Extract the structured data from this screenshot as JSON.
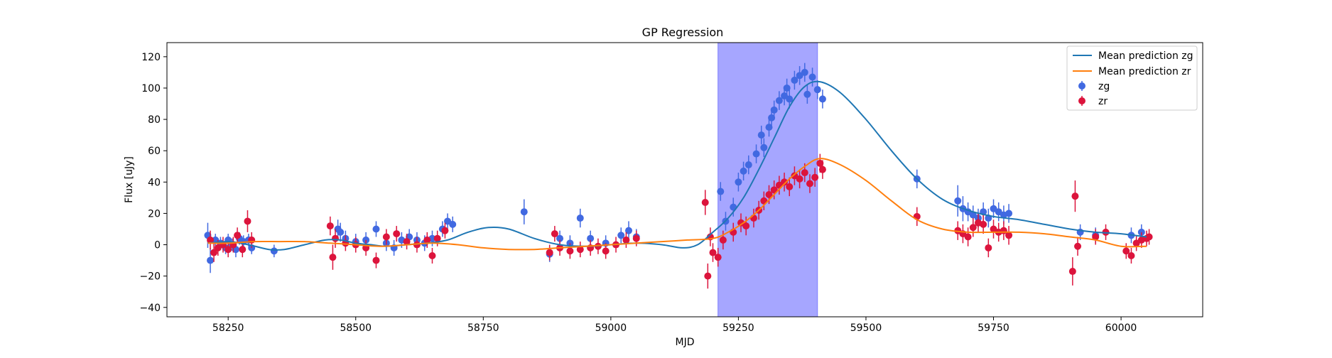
{
  "chart_data": {
    "type": "scatter",
    "title": "GP Regression",
    "xlabel": "MJD",
    "ylabel": "Flux [uJy]",
    "xlim": [
      58130,
      60160
    ],
    "ylim": [
      -46,
      129
    ],
    "x_ticks": [
      58250,
      58500,
      58750,
      59000,
      59250,
      59500,
      59750,
      60000
    ],
    "y_ticks": [
      -40,
      -20,
      0,
      20,
      40,
      60,
      80,
      100,
      120
    ],
    "grid": false,
    "legend_position": "top-right",
    "shaded_region": {
      "x_start": 59210,
      "x_end": 59405,
      "color": "#a6a6ff"
    },
    "series": [
      {
        "name": "Mean prediction zg",
        "kind": "line",
        "color": "#1f77b4",
        "x": [
          58210,
          58250,
          58290,
          58330,
          58360,
          58400,
          58440,
          58470,
          58500,
          58530,
          58560,
          58600,
          58640,
          58680,
          58720,
          58760,
          58800,
          58850,
          58900,
          58950,
          59000,
          59050,
          59100,
          59140,
          59170,
          59200,
          59230,
          59260,
          59290,
          59320,
          59350,
          59380,
          59410,
          59450,
          59500,
          59550,
          59600,
          59650,
          59700,
          59750,
          59800,
          59850,
          59900,
          59950,
          60000,
          60050
        ],
        "y": [
          1,
          2,
          0,
          -3,
          -3,
          0,
          3,
          3,
          1,
          0,
          -1,
          0,
          1,
          3,
          8,
          11,
          10,
          4,
          0,
          -1,
          0,
          1,
          0,
          -2,
          0,
          8,
          17,
          30,
          48,
          68,
          88,
          101,
          104,
          97,
          80,
          60,
          42,
          29,
          22,
          18,
          16,
          13,
          10,
          8,
          7,
          5
        ]
      },
      {
        "name": "Mean prediction zr",
        "kind": "line",
        "color": "#ff7f0e",
        "x": [
          58210,
          58250,
          58300,
          58350,
          58400,
          58450,
          58500,
          58550,
          58600,
          58650,
          58700,
          58750,
          58800,
          58850,
          58900,
          58950,
          59000,
          59050,
          59100,
          59150,
          59200,
          59230,
          59260,
          59290,
          59320,
          59350,
          59380,
          59410,
          59450,
          59500,
          59550,
          59600,
          59650,
          59700,
          59750,
          59800,
          59850,
          59900,
          59950,
          60000,
          60050
        ],
        "y": [
          1,
          1,
          2,
          2,
          2,
          1,
          0,
          -1,
          0,
          1,
          0,
          -2,
          -3,
          -3,
          -2,
          -1,
          0,
          1,
          2,
          3,
          4,
          8,
          14,
          22,
          32,
          42,
          50,
          55,
          51,
          41,
          28,
          16,
          10,
          8,
          8,
          8,
          7,
          5,
          3,
          -1,
          -1
        ]
      },
      {
        "name": "zg",
        "kind": "errorbar",
        "color": "#4169e1",
        "x": [
          58210,
          58215,
          58225,
          58235,
          58245,
          58250,
          58258,
          58265,
          58272,
          58280,
          58290,
          58296,
          58340,
          58465,
          58470,
          58480,
          58500,
          58520,
          58540,
          58560,
          58575,
          58590,
          58605,
          58620,
          58635,
          58650,
          58670,
          58680,
          58690,
          58830,
          58880,
          58900,
          58920,
          58940,
          58960,
          58990,
          59020,
          59035,
          59050,
          59215,
          59225,
          59240,
          59250,
          59260,
          59270,
          59285,
          59295,
          59300,
          59310,
          59315,
          59320,
          59330,
          59340,
          59345,
          59350,
          59360,
          59370,
          59380,
          59385,
          59395,
          59405,
          59415,
          59600,
          59680,
          59690,
          59700,
          59710,
          59720,
          59730,
          59740,
          59750,
          59760,
          59770,
          59780,
          59920,
          59950,
          60020,
          60040
        ],
        "y": [
          6,
          -10,
          3,
          1,
          -2,
          3,
          0,
          -3,
          4,
          2,
          3,
          -2,
          -4,
          10,
          8,
          4,
          2,
          3,
          10,
          1,
          -2,
          3,
          5,
          3,
          1,
          4,
          10,
          15,
          13,
          21,
          -6,
          4,
          1,
          17,
          4,
          1,
          6,
          9,
          5,
          34,
          15,
          24,
          40,
          47,
          51,
          58,
          70,
          62,
          75,
          81,
          86,
          92,
          95,
          100,
          93,
          105,
          108,
          110,
          96,
          107,
          99,
          93,
          42,
          28,
          23,
          21,
          19,
          17,
          21,
          17,
          23,
          21,
          19,
          20,
          8,
          6,
          6,
          8
        ],
        "yerr": [
          8,
          8,
          4,
          4,
          4,
          4,
          4,
          5,
          4,
          4,
          4,
          4,
          4,
          6,
          6,
          5,
          5,
          5,
          5,
          5,
          5,
          5,
          5,
          5,
          5,
          5,
          5,
          5,
          5,
          8,
          5,
          5,
          5,
          6,
          5,
          5,
          5,
          6,
          5,
          6,
          6,
          6,
          6,
          6,
          6,
          6,
          6,
          6,
          6,
          6,
          6,
          6,
          6,
          6,
          6,
          6,
          6,
          6,
          6,
          6,
          6,
          6,
          6,
          10,
          8,
          6,
          6,
          6,
          6,
          6,
          6,
          6,
          6,
          6,
          5,
          5,
          5,
          5
        ]
      },
      {
        "name": "zr",
        "kind": "errorbar",
        "color": "#dc143c",
        "x": [
          58215,
          58222,
          58230,
          58240,
          58250,
          58260,
          58268,
          58278,
          58288,
          58296,
          58450,
          58455,
          58460,
          58480,
          58500,
          58520,
          58540,
          58560,
          58580,
          58600,
          58620,
          58640,
          58650,
          58660,
          58675,
          58880,
          58890,
          58900,
          58920,
          58940,
          58960,
          58975,
          58990,
          59010,
          59030,
          59050,
          59185,
          59190,
          59195,
          59200,
          59210,
          59220,
          59240,
          59255,
          59265,
          59280,
          59290,
          59300,
          59310,
          59320,
          59330,
          59340,
          59350,
          59360,
          59370,
          59380,
          59390,
          59400,
          59410,
          59415,
          59600,
          59680,
          59690,
          59700,
          59710,
          59720,
          59730,
          59740,
          59750,
          59760,
          59770,
          59780,
          59905,
          59910,
          59915,
          59950,
          59970,
          60010,
          60020,
          60030,
          60040,
          60050,
          60055
        ],
        "y": [
          3,
          -5,
          -2,
          0,
          -3,
          0,
          6,
          -3,
          15,
          3,
          12,
          -8,
          4,
          1,
          0,
          -2,
          -10,
          5,
          7,
          2,
          0,
          3,
          -7,
          4,
          9,
          -5,
          7,
          -2,
          -4,
          -3,
          -2,
          -1,
          -4,
          0,
          3,
          4,
          27,
          -20,
          5,
          -5,
          -8,
          3,
          8,
          14,
          12,
          17,
          22,
          28,
          32,
          35,
          38,
          40,
          37,
          44,
          42,
          46,
          39,
          43,
          52,
          48,
          18,
          9,
          7,
          5,
          11,
          14,
          13,
          -2,
          10,
          8,
          9,
          6,
          -17,
          31,
          -1,
          5,
          8,
          -4,
          -7,
          1,
          3,
          4,
          5
        ],
        "yerr": [
          6,
          6,
          5,
          5,
          5,
          5,
          5,
          5,
          7,
          5,
          6,
          8,
          6,
          5,
          5,
          5,
          5,
          5,
          5,
          5,
          5,
          5,
          5,
          5,
          5,
          5,
          5,
          5,
          5,
          5,
          5,
          5,
          5,
          5,
          5,
          5,
          8,
          8,
          6,
          6,
          6,
          6,
          6,
          6,
          6,
          6,
          6,
          6,
          6,
          6,
          6,
          6,
          6,
          6,
          6,
          6,
          6,
          6,
          6,
          6,
          6,
          6,
          6,
          6,
          6,
          6,
          6,
          6,
          6,
          6,
          6,
          6,
          9,
          10,
          6,
          5,
          5,
          5,
          5,
          5,
          5,
          5,
          5
        ]
      }
    ]
  }
}
